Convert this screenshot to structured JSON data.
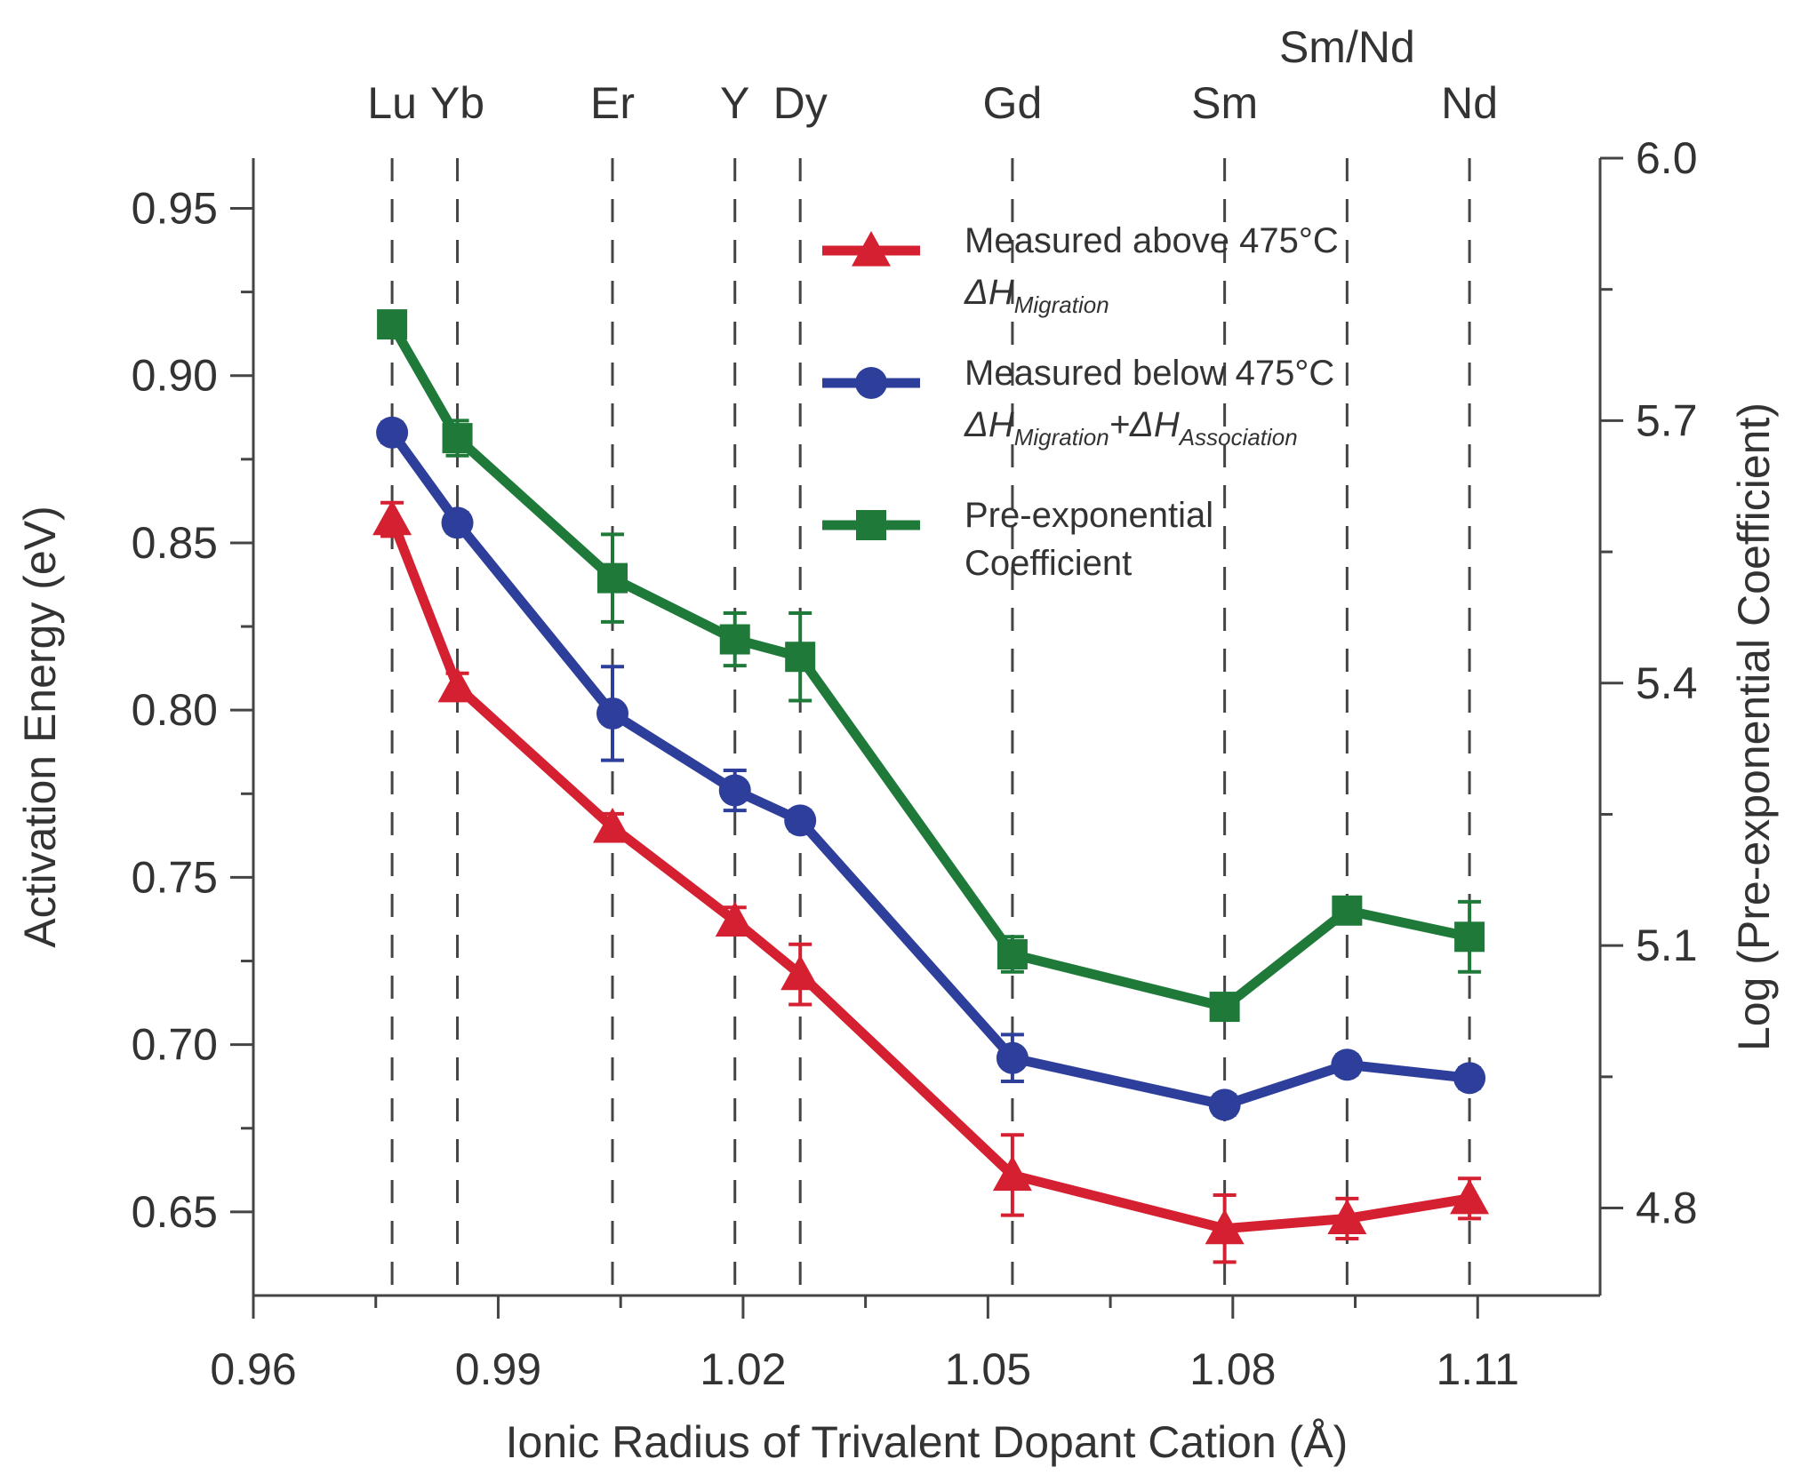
{
  "chart_data": {
    "type": "line",
    "xlabel": "Ionic Radius of Trivalent Dopant Cation (Å)",
    "ylabel": "Activation Energy (eV)",
    "y2label": "Log (Pre-exponential Coefficient)",
    "xlim": [
      0.96,
      1.125
    ],
    "ylim": [
      0.625,
      0.965
    ],
    "y2lim": [
      4.7,
      6.0
    ],
    "x_ticks": [
      "0.96",
      "0.99",
      "1.02",
      "1.05",
      "1.08",
      "1.11"
    ],
    "y_ticks": [
      "0.65",
      "0.70",
      "0.75",
      "0.80",
      "0.85",
      "0.90",
      "0.95"
    ],
    "y2_ticks": [
      "4.8",
      "5.1",
      "5.4",
      "5.7",
      "6.0"
    ],
    "grid": false,
    "legend_position": "top-right",
    "dopants": [
      {
        "label": "Lu",
        "x": 0.977
      },
      {
        "label": "Yb",
        "x": 0.985
      },
      {
        "label": "Er",
        "x": 1.004
      },
      {
        "label": "Y",
        "x": 1.019
      },
      {
        "label": "Dy",
        "x": 1.027
      },
      {
        "label": "Gd",
        "x": 1.053
      },
      {
        "label": "Sm",
        "x": 1.079
      },
      {
        "label": "Sm/Nd",
        "x": 1.094
      },
      {
        "label": "Nd",
        "x": 1.109
      }
    ],
    "series": [
      {
        "name": "Measured above 475°C",
        "sub_base": "ΔH",
        "sub_text": "Migration",
        "color": "#d42030",
        "marker": "triangle",
        "axis": "left",
        "x": [
          0.977,
          0.985,
          1.004,
          1.019,
          1.027,
          1.053,
          1.079,
          1.094,
          1.109
        ],
        "values": [
          0.857,
          0.807,
          0.765,
          0.737,
          0.721,
          0.661,
          0.645,
          0.648,
          0.654
        ],
        "errors": [
          0.005,
          0.004,
          0.004,
          0.004,
          0.009,
          0.012,
          0.01,
          0.006,
          0.006
        ]
      },
      {
        "name": "Measured below 475°C",
        "sub_base": "ΔH",
        "sub_text": "Migration",
        "sub_base2": "+ΔH",
        "sub_text2": "Association",
        "color": "#2e3f9b",
        "marker": "circle",
        "axis": "left",
        "x": [
          0.977,
          0.985,
          1.004,
          1.019,
          1.027,
          1.053,
          1.079,
          1.094,
          1.109
        ],
        "values": [
          0.883,
          0.856,
          0.799,
          0.776,
          0.767,
          0.696,
          0.682,
          0.694,
          0.69
        ],
        "errors": [
          0.003,
          0.003,
          0.014,
          0.006,
          0.003,
          0.007,
          0.003,
          0.003,
          0.003
        ]
      },
      {
        "name": "Pre-exponential Coefficient",
        "name_line1": "Pre-exponential",
        "name_line2": "Coefficient",
        "color": "#1f7a3a",
        "marker": "square",
        "axis": "right",
        "x": [
          0.977,
          0.985,
          1.004,
          1.019,
          1.027,
          1.053,
          1.079,
          1.094,
          1.109
        ],
        "values": [
          5.81,
          5.68,
          5.52,
          5.45,
          5.43,
          5.09,
          5.03,
          5.14,
          5.11
        ],
        "errors": [
          0.01,
          0.02,
          0.05,
          0.03,
          0.05,
          0.02,
          0.01,
          0.01,
          0.04
        ]
      }
    ]
  }
}
